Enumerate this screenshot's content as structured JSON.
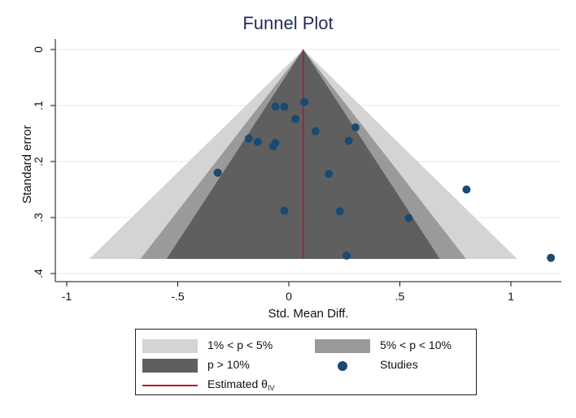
{
  "chart_data": {
    "type": "scatter",
    "title": "Funnel Plot",
    "xlabel": "Std. Mean Diff.",
    "ylabel": "Standard error",
    "xlim": [
      -1.03,
      1.13
    ],
    "ylim": [
      0,
      0.4
    ],
    "y_reversed": true,
    "grid": true,
    "x_ticks": [
      -1,
      -0.5,
      0,
      0.5,
      1
    ],
    "x_tick_labels": [
      "-1",
      "-.5",
      "0",
      ".5",
      "1"
    ],
    "y_ticks": [
      0,
      0.1,
      0.2,
      0.3,
      0.4
    ],
    "y_tick_labels": [
      "0",
      ".1",
      ".2",
      ".3",
      ".4"
    ],
    "estimated_theta": 0.065,
    "max_se": 0.374,
    "regions": [
      {
        "label": "1% < p < 5%",
        "z": 2.576,
        "color": "#d4d4d4"
      },
      {
        "label": "5% < p < 10%",
        "z": 1.96,
        "color": "#9a9a9a"
      },
      {
        "label": "p > 10%",
        "z": 1.645,
        "color": "#5f5f5f"
      }
    ],
    "series": [
      {
        "name": "Studies",
        "color": "#1a4a72",
        "points": [
          {
            "x": 0.07,
            "y": 0.094
          },
          {
            "x": -0.06,
            "y": 0.102
          },
          {
            "x": -0.02,
            "y": 0.102
          },
          {
            "x": 0.03,
            "y": 0.124
          },
          {
            "x": 0.3,
            "y": 0.139
          },
          {
            "x": 0.12,
            "y": 0.146
          },
          {
            "x": -0.18,
            "y": 0.159
          },
          {
            "x": 0.27,
            "y": 0.163
          },
          {
            "x": -0.14,
            "y": 0.165
          },
          {
            "x": -0.06,
            "y": 0.167
          },
          {
            "x": -0.07,
            "y": 0.173
          },
          {
            "x": -0.32,
            "y": 0.22
          },
          {
            "x": 0.18,
            "y": 0.222
          },
          {
            "x": 0.8,
            "y": 0.25
          },
          {
            "x": -0.02,
            "y": 0.288
          },
          {
            "x": 0.23,
            "y": 0.289
          },
          {
            "x": 0.54,
            "y": 0.301
          },
          {
            "x": 0.26,
            "y": 0.368
          },
          {
            "x": 1.18,
            "y": 0.372
          }
        ]
      }
    ],
    "legend": {
      "items": [
        {
          "label": "1% < p < 5%"
        },
        {
          "label": "5% < p < 10%"
        },
        {
          "label": "p > 10%"
        },
        {
          "label": "Studies"
        },
        {
          "label_main": "Estimated θ",
          "label_sub": "IV"
        }
      ]
    }
  },
  "colors": {
    "estimate_line": "#b0162b",
    "background": "#ffffff",
    "grid": "#e3ebf1",
    "title": "#1f2d57"
  }
}
